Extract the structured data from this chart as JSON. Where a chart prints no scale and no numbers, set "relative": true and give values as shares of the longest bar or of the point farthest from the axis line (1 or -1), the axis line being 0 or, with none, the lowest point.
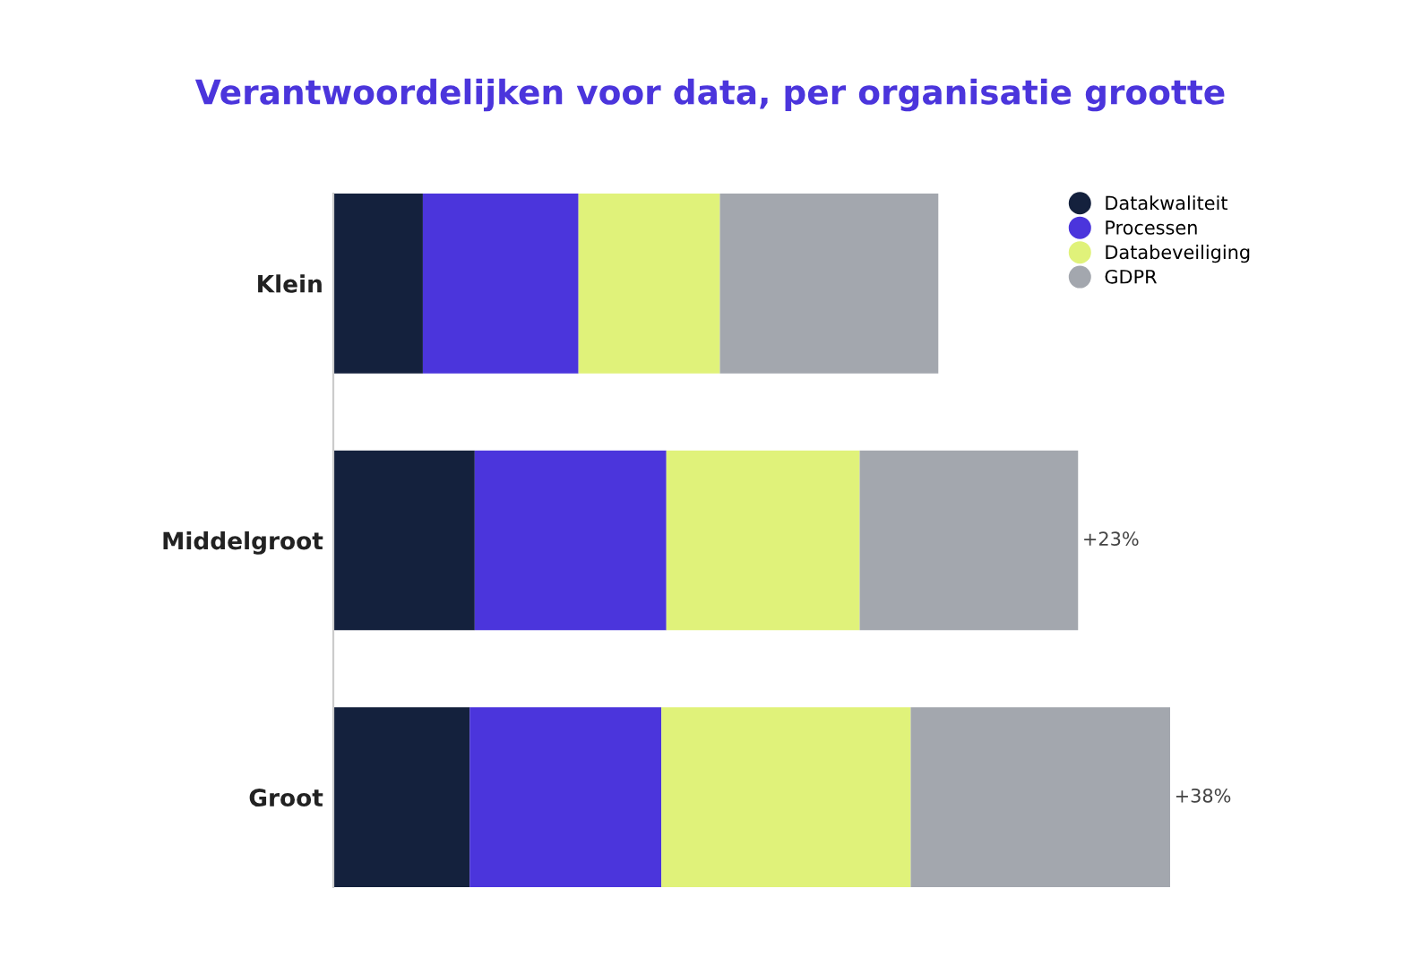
{
  "chart_data": {
    "type": "bar",
    "title": "Verantwoordelijken voor data, per organisatie grootte",
    "orientation": "horizontal",
    "stacked": true,
    "relative": true,
    "categories": [
      "Klein",
      "Middelgroot",
      "Groot"
    ],
    "series": [
      {
        "name": "Datakwaliteit",
        "color": "#14213d",
        "values": [
          0.107,
          0.169,
          0.163
        ]
      },
      {
        "name": "Processen",
        "color": "#4b35dc",
        "values": [
          0.186,
          0.229,
          0.229
        ]
      },
      {
        "name": "Databeveiliging",
        "color": "#e0f27a",
        "values": [
          0.169,
          0.231,
          0.298
        ]
      },
      {
        "name": "GDPR",
        "color": "#a3a7ae",
        "values": [
          0.261,
          0.261,
          0.31
        ]
      }
    ],
    "annotations": [
      {
        "text": "+23%",
        "x": 0.89,
        "y": "Middelgroot"
      },
      {
        "text": "+38%",
        "x": 1.0,
        "y": "Groot"
      }
    ],
    "legend": "top right",
    "marker": "circle",
    "grid": false
  }
}
